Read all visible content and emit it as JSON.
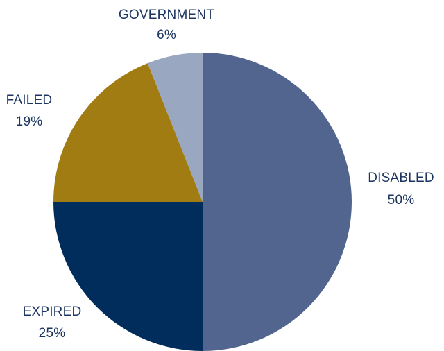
{
  "chart_data": {
    "type": "pie",
    "title": "",
    "start_angle_deg": 0,
    "direction": "clockwise",
    "slices": [
      {
        "label": "DISABLED",
        "value": 50,
        "value_label": "50%",
        "color": "#52658f"
      },
      {
        "label": "EXPIRED",
        "value": 25,
        "value_label": "25%",
        "color": "#002d5b"
      },
      {
        "label": "FAILED",
        "value": 19,
        "value_label": "19%",
        "color": "#a07c13"
      },
      {
        "label": "GOVERNMENT",
        "value": 6,
        "value_label": "6%",
        "color": "#9aa7c0"
      }
    ],
    "label_color": "#1c3560"
  }
}
